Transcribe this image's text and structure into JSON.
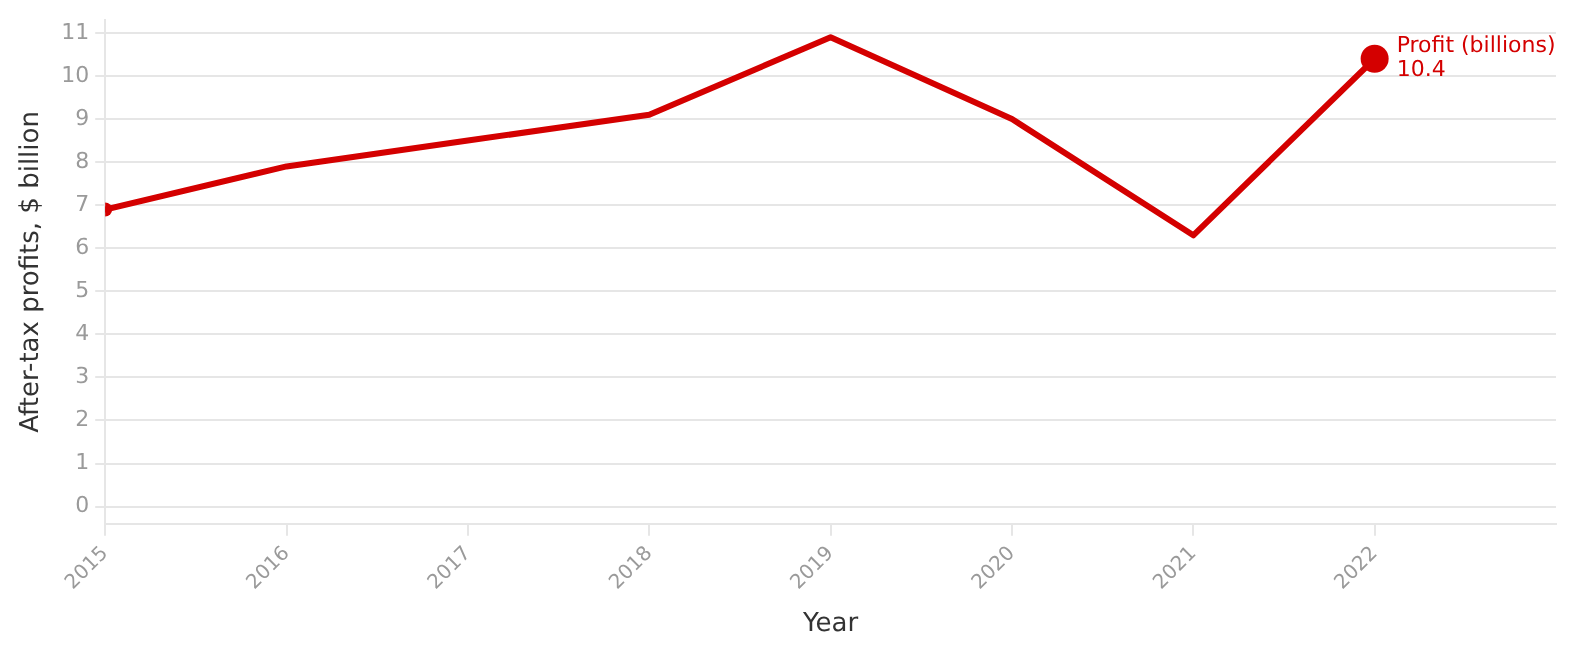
{
  "chart_data": {
    "type": "line",
    "xlabel": "Year",
    "ylabel": "After-tax profits, $ billion",
    "x": [
      2015,
      2016,
      2017,
      2018,
      2019,
      2020,
      2021,
      2022
    ],
    "series": [
      {
        "name": "Profit (billions)",
        "color": "#d40000",
        "values": [
          6.9,
          7.9,
          8.5,
          9.1,
          10.9,
          9.0,
          6.3,
          10.4
        ],
        "value_labels": [
          null,
          null,
          null,
          null,
          null,
          null,
          null,
          "10.4"
        ]
      }
    ],
    "xlim": [
      2015,
      2023
    ],
    "xticks": [
      2015,
      2016,
      2017,
      2018,
      2019,
      2020,
      2021,
      2022
    ],
    "ylim": [
      -0.4,
      11.3
    ],
    "yticks": [
      0,
      1,
      2,
      3,
      4,
      5,
      6,
      7,
      8,
      9,
      10,
      11
    ],
    "grid": "y",
    "legend": false,
    "marker": "none",
    "line_style": "solid"
  }
}
